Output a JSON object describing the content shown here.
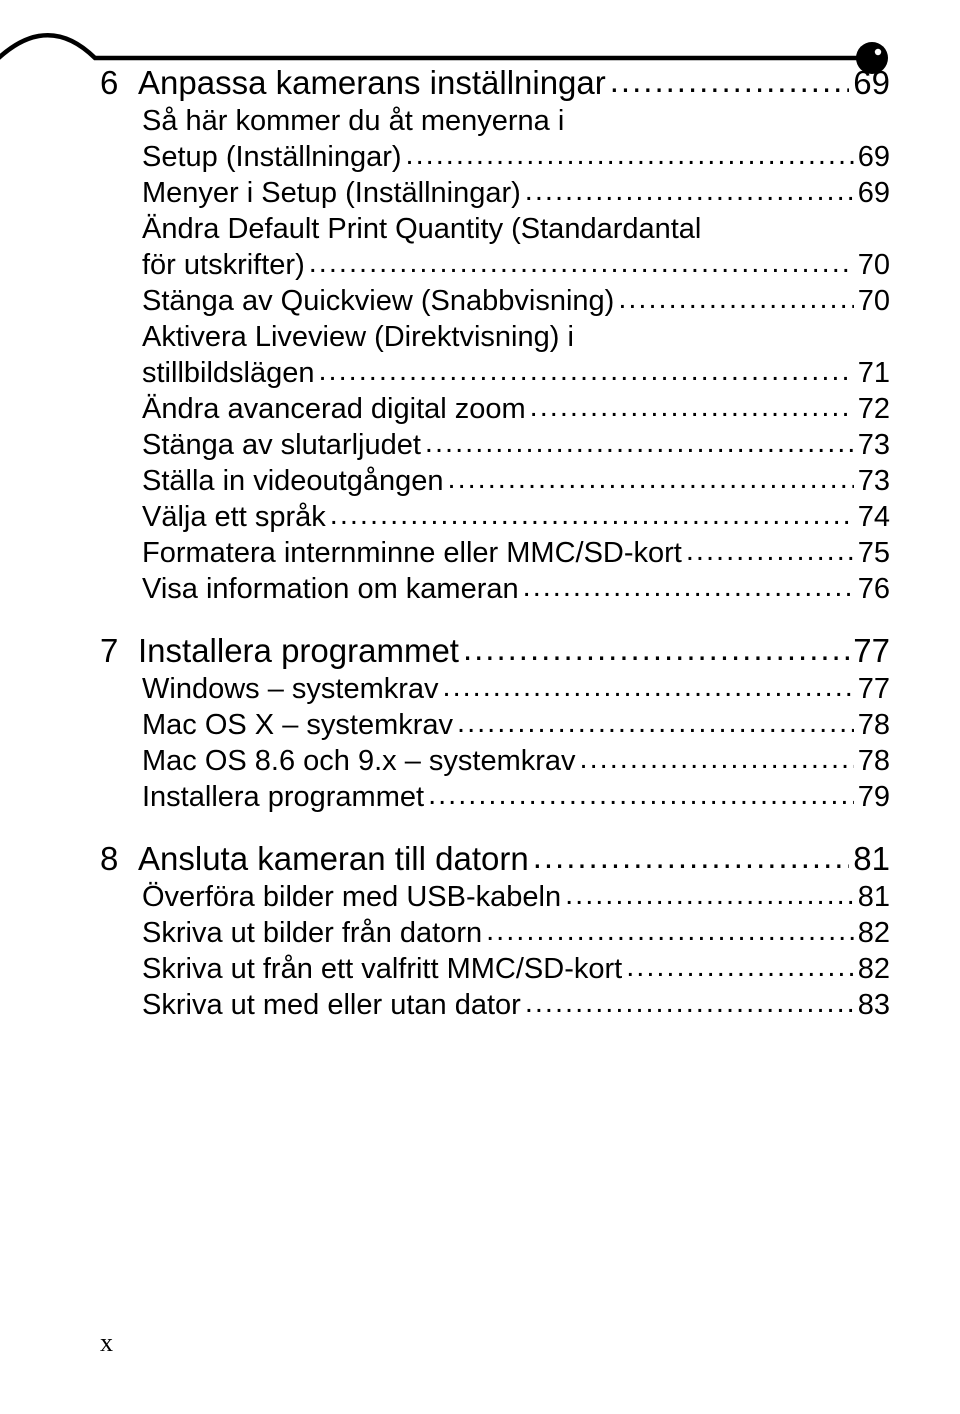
{
  "colors": {
    "background": "#ffffff",
    "text": "#000000"
  },
  "typography": {
    "body_font": "Century Gothic / Futura-like geometric sans",
    "chapter_fontsize_pt": 24,
    "sub_fontsize_pt": 21,
    "pagenum_fontsize_pt": 19,
    "leader_char": "."
  },
  "page_number": "x",
  "toc": [
    {
      "type": "chapter",
      "num": "6",
      "label": "Anpassa kamerans inställningar",
      "page": "69"
    },
    {
      "type": "sub-multi",
      "lines": [
        "Så här kommer du åt menyerna i",
        "Setup (Inställningar)"
      ],
      "page": "69"
    },
    {
      "type": "sub",
      "label": "Menyer i Setup (Inställningar)",
      "page": "69"
    },
    {
      "type": "sub-multi",
      "lines": [
        "Ändra Default Print Quantity (Standardantal",
        "för utskrifter)"
      ],
      "page": "70"
    },
    {
      "type": "sub",
      "label": "Stänga av Quickview (Snabbvisning)",
      "page": "70"
    },
    {
      "type": "sub-multi",
      "lines": [
        "Aktivera Liveview (Direktvisning) i",
        "stillbildslägen"
      ],
      "page": "71"
    },
    {
      "type": "sub",
      "label": "Ändra avancerad digital zoom",
      "page": "72"
    },
    {
      "type": "sub",
      "label": "Stänga av slutarljudet",
      "page": "73"
    },
    {
      "type": "sub",
      "label": "Ställa in videoutgången",
      "page": "73"
    },
    {
      "type": "sub",
      "label": "Välja ett språk",
      "page": "74"
    },
    {
      "type": "sub",
      "label": "Formatera internminne eller MMC/SD-kort",
      "page": "75"
    },
    {
      "type": "sub",
      "label": "Visa information om kameran",
      "page": "76"
    },
    {
      "type": "chapter",
      "num": "7",
      "label": "Installera programmet",
      "page": "77"
    },
    {
      "type": "sub",
      "label": "Windows – systemkrav",
      "page": "77"
    },
    {
      "type": "sub",
      "label": "Mac OS X – systemkrav",
      "page": "78"
    },
    {
      "type": "sub",
      "label": "Mac OS 8.6 och 9.x – systemkrav",
      "page": "78"
    },
    {
      "type": "sub",
      "label": "Installera programmet",
      "page": "79"
    },
    {
      "type": "chapter",
      "num": "8",
      "label": "Ansluta kameran till datorn",
      "page": "81"
    },
    {
      "type": "sub",
      "label": "Överföra bilder med USB-kabeln",
      "page": "81"
    },
    {
      "type": "sub",
      "label": "Skriva ut bilder från datorn",
      "page": "82"
    },
    {
      "type": "sub",
      "label": "Skriva ut från ett valfritt MMC/SD-kort",
      "page": "82"
    },
    {
      "type": "sub",
      "label": "Skriva ut med eller utan dator",
      "page": "83"
    }
  ]
}
